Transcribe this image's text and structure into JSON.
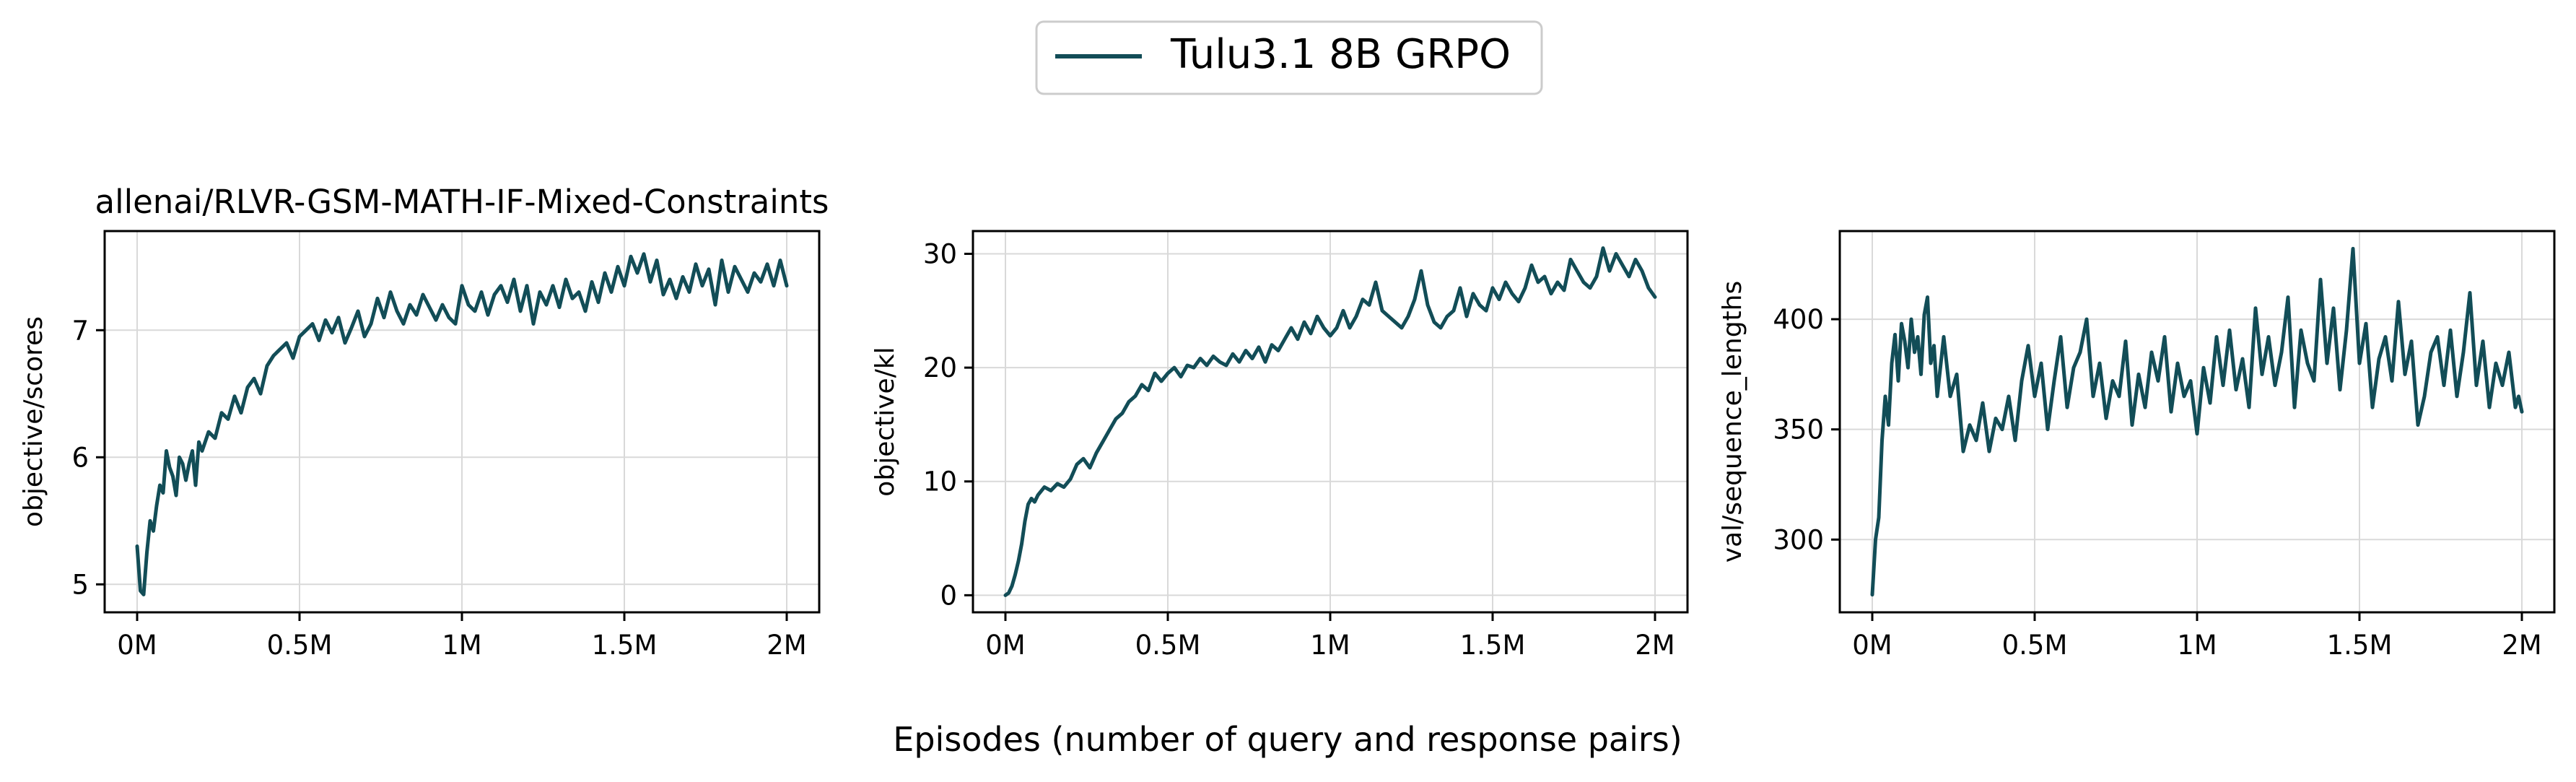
{
  "legend": {
    "label": "Tulu3.1 8B GRPO",
    "color": "#124d57"
  },
  "figure": {
    "xlabel": "Episodes (number of query and response pairs)"
  },
  "chart_data": [
    {
      "type": "line",
      "title": "allenai/RLVR-GSM-MATH-IF-Mixed-Constraints",
      "xlabel": "",
      "ylabel": "objective/scores",
      "xlim": [
        -100000,
        2100000
      ],
      "ylim": [
        4.78,
        7.78
      ],
      "x_ticks": [
        0,
        500000,
        1000000,
        1500000,
        2000000
      ],
      "x_tick_labels": [
        "0M",
        "0.5M",
        "1M",
        "1.5M",
        "2M"
      ],
      "y_ticks": [
        5,
        6,
        7
      ],
      "y_tick_labels": [
        "5",
        "6",
        "7"
      ],
      "grid": true,
      "series": [
        {
          "name": "Tulu3.1 8B GRPO",
          "color": "#124d57",
          "x": [
            0,
            10000,
            20000,
            30000,
            40000,
            50000,
            60000,
            70000,
            80000,
            90000,
            100000,
            110000,
            120000,
            130000,
            140000,
            150000,
            160000,
            170000,
            180000,
            190000,
            200000,
            220000,
            240000,
            260000,
            280000,
            300000,
            320000,
            340000,
            360000,
            380000,
            400000,
            420000,
            440000,
            460000,
            480000,
            500000,
            520000,
            540000,
            560000,
            580000,
            600000,
            620000,
            640000,
            660000,
            680000,
            700000,
            720000,
            740000,
            760000,
            780000,
            800000,
            820000,
            840000,
            860000,
            880000,
            900000,
            920000,
            940000,
            960000,
            980000,
            1000000,
            1020000,
            1040000,
            1060000,
            1080000,
            1100000,
            1120000,
            1140000,
            1160000,
            1180000,
            1200000,
            1220000,
            1240000,
            1260000,
            1280000,
            1300000,
            1320000,
            1340000,
            1360000,
            1380000,
            1400000,
            1420000,
            1440000,
            1460000,
            1480000,
            1500000,
            1520000,
            1540000,
            1560000,
            1580000,
            1600000,
            1620000,
            1640000,
            1660000,
            1680000,
            1700000,
            1720000,
            1740000,
            1760000,
            1780000,
            1800000,
            1820000,
            1840000,
            1860000,
            1880000,
            1900000,
            1920000,
            1940000,
            1960000,
            1980000,
            2000000
          ],
          "y": [
            5.3,
            4.95,
            4.92,
            5.25,
            5.5,
            5.42,
            5.62,
            5.78,
            5.72,
            6.05,
            5.92,
            5.85,
            5.7,
            6.0,
            5.95,
            5.82,
            5.95,
            6.05,
            5.78,
            6.12,
            6.05,
            6.2,
            6.15,
            6.35,
            6.3,
            6.48,
            6.35,
            6.55,
            6.62,
            6.5,
            6.72,
            6.8,
            6.85,
            6.9,
            6.78,
            6.95,
            7.0,
            7.05,
            6.92,
            7.08,
            6.98,
            7.1,
            6.9,
            7.02,
            7.15,
            6.95,
            7.05,
            7.25,
            7.1,
            7.3,
            7.15,
            7.05,
            7.2,
            7.12,
            7.28,
            7.18,
            7.08,
            7.2,
            7.1,
            7.05,
            7.35,
            7.2,
            7.15,
            7.3,
            7.12,
            7.28,
            7.35,
            7.22,
            7.4,
            7.15,
            7.35,
            7.05,
            7.3,
            7.2,
            7.35,
            7.18,
            7.4,
            7.25,
            7.3,
            7.15,
            7.38,
            7.22,
            7.45,
            7.3,
            7.5,
            7.35,
            7.58,
            7.45,
            7.6,
            7.38,
            7.55,
            7.28,
            7.4,
            7.25,
            7.42,
            7.3,
            7.52,
            7.35,
            7.48,
            7.2,
            7.55,
            7.3,
            7.5,
            7.4,
            7.3,
            7.45,
            7.38,
            7.52,
            7.35,
            7.55,
            7.35
          ]
        }
      ]
    },
    {
      "type": "line",
      "title": "",
      "xlabel": "",
      "ylabel": "objective/kl",
      "xlim": [
        -100000,
        2100000
      ],
      "ylim": [
        -1.5,
        32
      ],
      "x_ticks": [
        0,
        500000,
        1000000,
        1500000,
        2000000
      ],
      "x_tick_labels": [
        "0M",
        "0.5M",
        "1M",
        "1.5M",
        "2M"
      ],
      "y_ticks": [
        0,
        10,
        20,
        30
      ],
      "y_tick_labels": [
        "0",
        "10",
        "20",
        "30"
      ],
      "grid": true,
      "series": [
        {
          "name": "Tulu3.1 8B GRPO",
          "color": "#124d57",
          "x": [
            0,
            10000,
            20000,
            30000,
            40000,
            50000,
            60000,
            70000,
            80000,
            90000,
            100000,
            120000,
            140000,
            160000,
            180000,
            200000,
            220000,
            240000,
            260000,
            280000,
            300000,
            320000,
            340000,
            360000,
            380000,
            400000,
            420000,
            440000,
            460000,
            480000,
            500000,
            520000,
            540000,
            560000,
            580000,
            600000,
            620000,
            640000,
            660000,
            680000,
            700000,
            720000,
            740000,
            760000,
            780000,
            800000,
            820000,
            840000,
            860000,
            880000,
            900000,
            920000,
            940000,
            960000,
            980000,
            1000000,
            1020000,
            1040000,
            1060000,
            1080000,
            1100000,
            1120000,
            1140000,
            1160000,
            1180000,
            1200000,
            1220000,
            1240000,
            1260000,
            1280000,
            1300000,
            1320000,
            1340000,
            1360000,
            1380000,
            1400000,
            1420000,
            1440000,
            1460000,
            1480000,
            1500000,
            1520000,
            1540000,
            1560000,
            1580000,
            1600000,
            1620000,
            1640000,
            1660000,
            1680000,
            1700000,
            1720000,
            1740000,
            1760000,
            1780000,
            1800000,
            1820000,
            1840000,
            1860000,
            1880000,
            1900000,
            1920000,
            1940000,
            1960000,
            1980000,
            2000000
          ],
          "y": [
            0,
            0.2,
            0.8,
            1.8,
            3.0,
            4.5,
            6.5,
            8.0,
            8.5,
            8.2,
            8.8,
            9.5,
            9.2,
            9.8,
            9.5,
            10.2,
            11.5,
            12.0,
            11.2,
            12.5,
            13.5,
            14.5,
            15.5,
            16.0,
            17.0,
            17.5,
            18.5,
            18.0,
            19.5,
            18.8,
            19.5,
            20.0,
            19.2,
            20.2,
            20.0,
            20.8,
            20.2,
            21.0,
            20.5,
            20.2,
            21.2,
            20.5,
            21.5,
            20.8,
            21.8,
            20.5,
            22.0,
            21.5,
            22.5,
            23.5,
            22.5,
            24.0,
            23.0,
            24.5,
            23.5,
            22.8,
            23.5,
            25.0,
            23.5,
            24.5,
            26.0,
            25.5,
            27.5,
            25.0,
            24.5,
            24.0,
            23.5,
            24.5,
            26.0,
            28.5,
            25.5,
            24.0,
            23.5,
            24.5,
            25.0,
            27.0,
            24.5,
            26.5,
            25.5,
            25.0,
            27.0,
            26.0,
            27.5,
            26.5,
            25.8,
            27.0,
            29.0,
            27.5,
            28.0,
            26.5,
            27.5,
            26.8,
            29.5,
            28.5,
            27.5,
            27.0,
            28.0,
            30.5,
            28.5,
            30.0,
            29.0,
            28.0,
            29.5,
            28.5,
            27.0,
            26.2
          ]
        }
      ]
    },
    {
      "type": "line",
      "title": "",
      "xlabel": "",
      "ylabel": "val/sequence_lengths",
      "xlim": [
        -100000,
        2100000
      ],
      "ylim": [
        267,
        440
      ],
      "x_ticks": [
        0,
        500000,
        1000000,
        1500000,
        2000000
      ],
      "x_tick_labels": [
        "0M",
        "0.5M",
        "1M",
        "1.5M",
        "2M"
      ],
      "y_ticks": [
        300,
        350,
        400
      ],
      "y_tick_labels": [
        "300",
        "350",
        "400"
      ],
      "grid": true,
      "series": [
        {
          "name": "Tulu3.1 8B GRPO",
          "color": "#124d57",
          "x": [
            0,
            10000,
            20000,
            30000,
            40000,
            50000,
            60000,
            70000,
            80000,
            90000,
            100000,
            110000,
            120000,
            130000,
            140000,
            150000,
            160000,
            170000,
            180000,
            190000,
            200000,
            220000,
            240000,
            260000,
            280000,
            300000,
            320000,
            340000,
            360000,
            380000,
            400000,
            420000,
            440000,
            460000,
            480000,
            500000,
            520000,
            540000,
            560000,
            580000,
            600000,
            620000,
            640000,
            660000,
            680000,
            700000,
            720000,
            740000,
            760000,
            780000,
            800000,
            820000,
            840000,
            860000,
            880000,
            900000,
            920000,
            940000,
            960000,
            980000,
            1000000,
            1020000,
            1040000,
            1060000,
            1080000,
            1100000,
            1120000,
            1140000,
            1160000,
            1180000,
            1200000,
            1220000,
            1240000,
            1260000,
            1280000,
            1300000,
            1320000,
            1340000,
            1360000,
            1380000,
            1400000,
            1420000,
            1440000,
            1460000,
            1480000,
            1500000,
            1520000,
            1540000,
            1560000,
            1580000,
            1600000,
            1620000,
            1640000,
            1660000,
            1680000,
            1700000,
            1720000,
            1740000,
            1760000,
            1780000,
            1800000,
            1820000,
            1840000,
            1860000,
            1880000,
            1900000,
            1920000,
            1940000,
            1960000,
            1980000,
            1990000,
            2000000
          ],
          "y": [
            275,
            300,
            310,
            345,
            365,
            352,
            380,
            393,
            372,
            398,
            390,
            378,
            400,
            385,
            392,
            375,
            402,
            410,
            380,
            388,
            365,
            392,
            365,
            375,
            340,
            352,
            345,
            362,
            340,
            355,
            350,
            365,
            345,
            372,
            388,
            365,
            380,
            350,
            372,
            392,
            360,
            378,
            385,
            400,
            365,
            380,
            355,
            372,
            365,
            390,
            352,
            375,
            360,
            385,
            372,
            392,
            358,
            380,
            365,
            372,
            348,
            378,
            362,
            392,
            370,
            395,
            368,
            382,
            360,
            405,
            375,
            392,
            370,
            385,
            410,
            360,
            395,
            380,
            372,
            418,
            380,
            405,
            368,
            395,
            432,
            380,
            398,
            360,
            382,
            392,
            372,
            408,
            375,
            390,
            352,
            365,
            385,
            392,
            370,
            395,
            365,
            385,
            412,
            370,
            390,
            360,
            380,
            370,
            385,
            360,
            365,
            358
          ]
        }
      ]
    }
  ]
}
